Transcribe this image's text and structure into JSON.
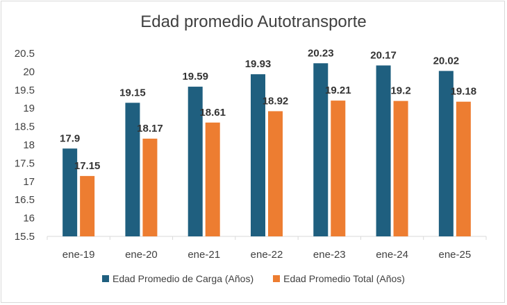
{
  "chart_data": {
    "type": "bar",
    "title": "Edad promedio Autotransporte",
    "categories": [
      "ene-19",
      "ene-20",
      "ene-21",
      "ene-22",
      "ene-23",
      "ene-24",
      "ene-25"
    ],
    "series": [
      {
        "name": "Edad Promedio de Carga (Años)",
        "color": "#1f5f7f",
        "values": [
          17.9,
          19.15,
          19.59,
          19.93,
          20.23,
          20.17,
          20.02
        ]
      },
      {
        "name": "Edad Promedio Total (Años)",
        "color": "#ed7d31",
        "values": [
          17.15,
          18.17,
          18.61,
          18.92,
          19.21,
          19.2,
          19.18
        ]
      }
    ],
    "ylim": [
      15.5,
      20.5
    ],
    "yticks": [
      "15.5",
      "16",
      "16.5",
      "17",
      "17.5",
      "18",
      "18.5",
      "19",
      "19.5",
      "20",
      "20.5"
    ],
    "grid": false,
    "legend_position": "bottom"
  }
}
